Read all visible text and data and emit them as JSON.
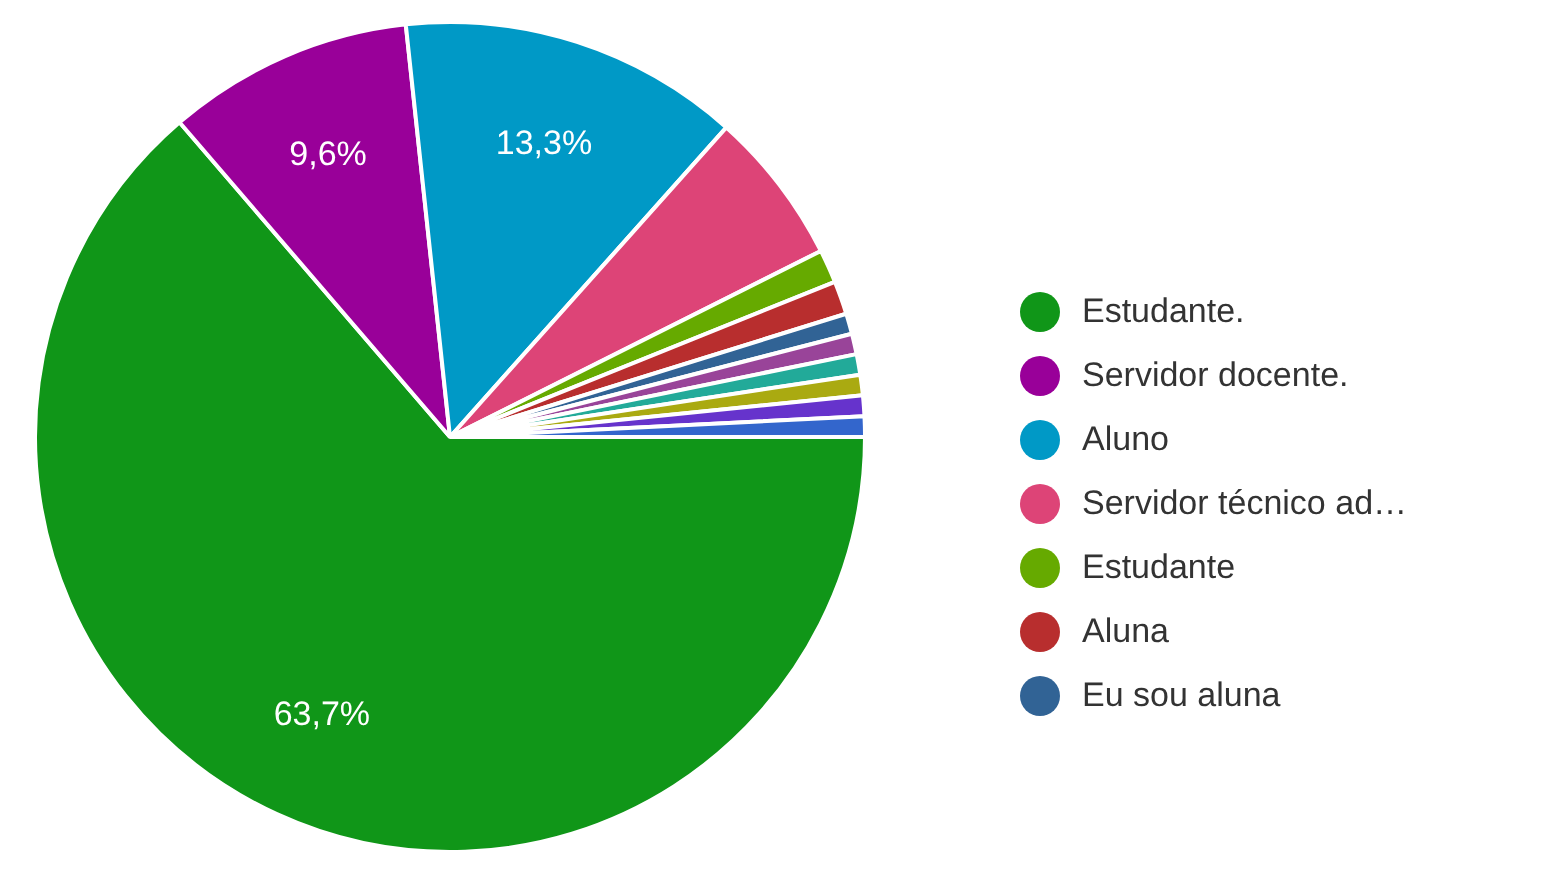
{
  "chart_data": {
    "type": "pie",
    "categories": [
      "Estudante.",
      "Servidor docente.",
      "Aluno",
      "Servidor técnico ad…",
      "Estudante",
      "Aluna",
      "Eu sou aluna",
      null,
      null,
      null,
      null,
      null
    ],
    "values": [
      63.7,
      9.6,
      13.3,
      6.0,
      1.3,
      1.3,
      0.8,
      0.8,
      0.8,
      0.8,
      0.8,
      0.8
    ],
    "colors": [
      "#109618",
      "#990099",
      "#0099c6",
      "#dd4477",
      "#66aa00",
      "#b82e2e",
      "#316395",
      "#994499",
      "#22aa99",
      "#aaaa11",
      "#6633cc",
      "#3366cc"
    ],
    "value_labels": [
      "63,7%",
      "9,6%",
      "13,3%",
      null,
      null,
      null,
      null,
      null,
      null,
      null,
      null,
      null
    ],
    "legend": "right"
  }
}
